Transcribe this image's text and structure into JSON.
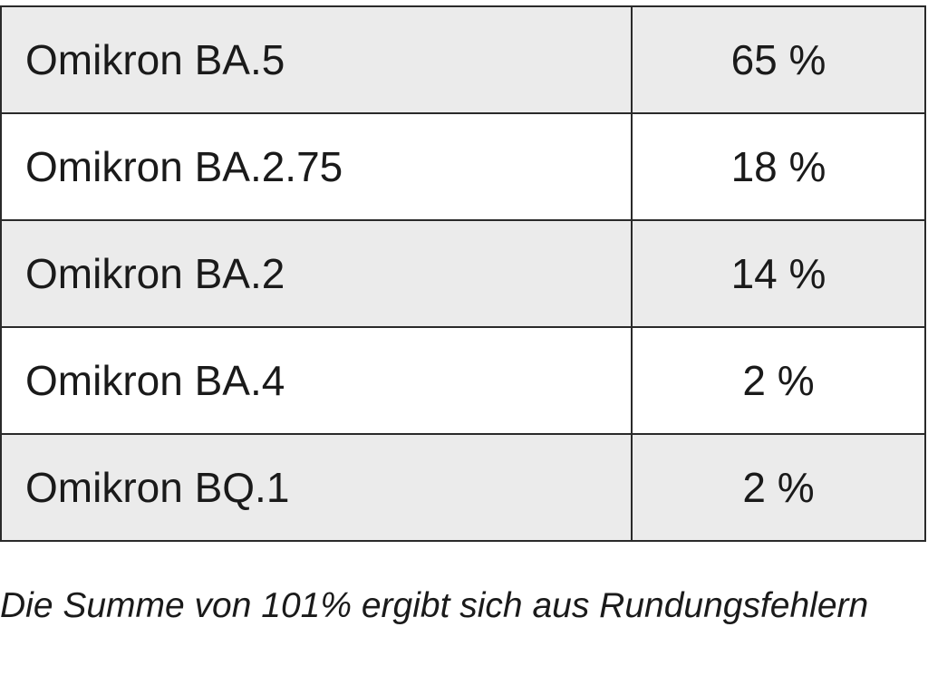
{
  "table": {
    "rows": [
      {
        "variant": "Omikron BA.5",
        "share": "65 %"
      },
      {
        "variant": "Omikron BA.2.75",
        "share": "18 %"
      },
      {
        "variant": "Omikron BA.2",
        "share": "14 %"
      },
      {
        "variant": "Omikron BA.4",
        "share": "2 %"
      },
      {
        "variant": "Omikron BQ.1",
        "share": "2 %"
      }
    ]
  },
  "footnote": "Die Summe von 101% ergibt sich aus Rundungsfehlern"
}
